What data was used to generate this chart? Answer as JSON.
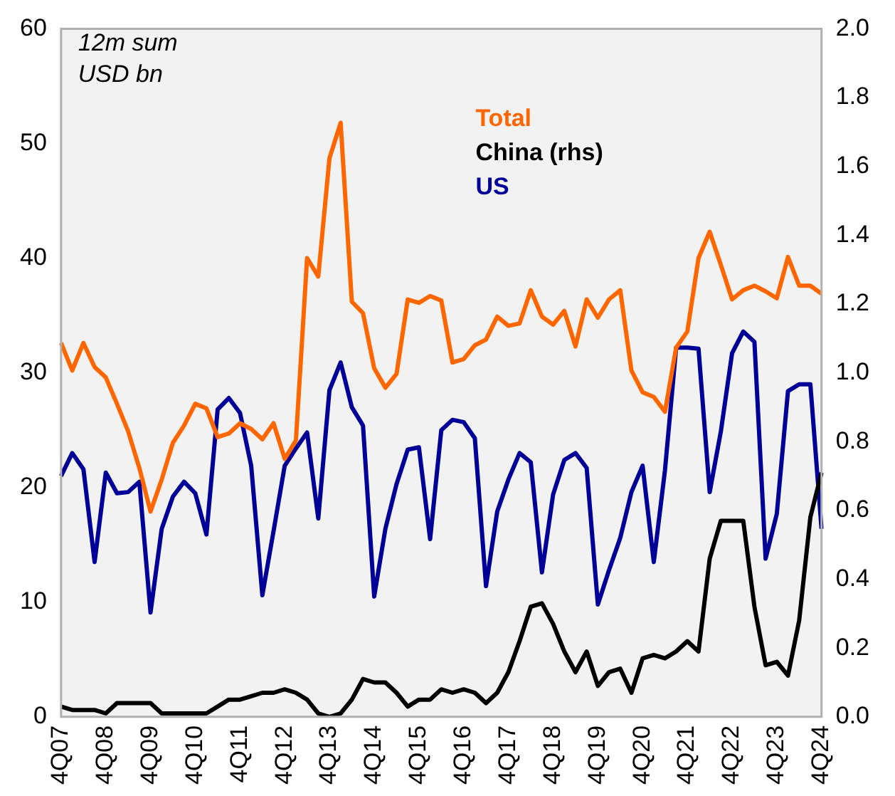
{
  "chart_data": {
    "type": "line",
    "annotations": [
      "12m sum",
      "USD bn"
    ],
    "categories": [
      "4Q07",
      null,
      null,
      null,
      "4Q08",
      null,
      null,
      null,
      "4Q09",
      null,
      null,
      null,
      "4Q10",
      null,
      null,
      null,
      "4Q11",
      null,
      null,
      null,
      "4Q12",
      null,
      null,
      null,
      "4Q13",
      null,
      null,
      null,
      "4Q14",
      null,
      null,
      null,
      "4Q15",
      null,
      null,
      null,
      "4Q16",
      null,
      null,
      null,
      "4Q17",
      null,
      null,
      null,
      "4Q18",
      null,
      null,
      null,
      "4Q19",
      null,
      null,
      null,
      "4Q20",
      null,
      null,
      null,
      "4Q21",
      null,
      null,
      null,
      "4Q22",
      null,
      null,
      null,
      "4Q23",
      null,
      null,
      null,
      "4Q24"
    ],
    "series": [
      {
        "name": "Total",
        "color": "#ff6600",
        "values": [
          32.6,
          30.2,
          32.6,
          30.5,
          29.6,
          27.3,
          24.9,
          21.7,
          17.9,
          20.7,
          23.9,
          25.4,
          27.3,
          26.9,
          24.4,
          24.7,
          25.6,
          25.1,
          24.2,
          25.6,
          22.5,
          24.1,
          40.0,
          38.4,
          48.7,
          51.8,
          36.2,
          35.2,
          30.4,
          28.7,
          29.9,
          36.4,
          36.1,
          36.7,
          36.3,
          30.9,
          31.2,
          32.4,
          32.9,
          34.9,
          34.1,
          34.3,
          37.2,
          34.9,
          34.2,
          35.4,
          32.3,
          36.4,
          34.8,
          36.4,
          37.2,
          30.2,
          28.3,
          27.9,
          26.6,
          32.2,
          33.6,
          40.0,
          42.3,
          39.4,
          36.4,
          37.2,
          37.6,
          37.1,
          36.5,
          40.1,
          37.6,
          37.6,
          36.9
        ]
      },
      {
        "name": "China (rhs)",
        "color": "#000000",
        "axis": "y2",
        "values": [
          0.03,
          0.02,
          0.02,
          0.02,
          0.01,
          0.04,
          0.04,
          0.04,
          0.04,
          0.01,
          0.01,
          0.01,
          0.01,
          0.01,
          0.03,
          0.05,
          0.05,
          0.06,
          0.07,
          0.07,
          0.08,
          0.07,
          0.05,
          0.01,
          0.0,
          0.01,
          0.05,
          0.11,
          0.1,
          0.1,
          0.07,
          0.03,
          0.05,
          0.05,
          0.08,
          0.07,
          0.08,
          0.07,
          0.04,
          0.07,
          0.13,
          0.22,
          0.32,
          0.33,
          0.27,
          0.19,
          0.13,
          0.19,
          0.09,
          0.13,
          0.14,
          0.07,
          0.17,
          0.18,
          0.17,
          0.19,
          0.22,
          0.19,
          0.46,
          0.57,
          0.57,
          0.57,
          0.32,
          0.15,
          0.16,
          0.12,
          0.28,
          0.58,
          0.71
        ]
      },
      {
        "name": "US",
        "color": "#000099",
        "values": [
          21.0,
          23.0,
          21.6,
          13.5,
          21.3,
          19.5,
          19.6,
          20.5,
          9.1,
          16.4,
          19.2,
          20.5,
          19.5,
          15.9,
          26.8,
          27.8,
          26.5,
          21.9,
          10.6,
          16.2,
          21.9,
          23.4,
          24.8,
          17.3,
          28.5,
          30.9,
          27.0,
          25.4,
          10.5,
          16.4,
          20.3,
          23.3,
          23.5,
          15.5,
          25.0,
          25.9,
          25.7,
          24.3,
          11.4,
          17.9,
          20.7,
          23.0,
          22.2,
          12.6,
          19.4,
          22.4,
          23.0,
          21.7,
          9.8,
          12.8,
          15.6,
          19.6,
          21.9,
          13.5,
          21.5,
          32.2,
          32.2,
          32.1,
          19.6,
          24.9,
          31.7,
          33.6,
          32.7,
          13.8,
          17.7,
          28.4,
          29.0,
          29.0,
          16.4
        ]
      }
    ],
    "ylim": [
      0,
      60
    ],
    "yticks": [
      0,
      10,
      20,
      30,
      40,
      50,
      60
    ],
    "y2lim": [
      0,
      2
    ],
    "y2ticks": [
      {
        "value": 0,
        "label": "0.0"
      },
      0.2,
      0.4,
      0.6,
      0.8,
      {
        "value": 1,
        "label": "1.0"
      },
      1.2,
      1.4,
      1.6,
      1.8,
      {
        "value": 2,
        "label": "2.0"
      }
    ],
    "legend": "top",
    "grid": false,
    "marker": "none",
    "line_style": "solid"
  }
}
